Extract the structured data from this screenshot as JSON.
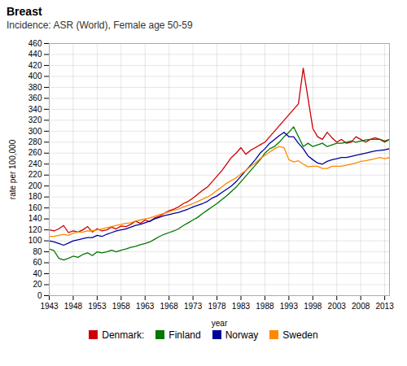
{
  "chart_data": {
    "type": "line",
    "title": "Breast",
    "subtitle": "Incidence: ASR (World), Female age 50-59",
    "xlabel": "year",
    "ylabel": "rate per 100,000",
    "x": [
      1943,
      1944,
      1945,
      1946,
      1947,
      1948,
      1949,
      1950,
      1951,
      1952,
      1953,
      1954,
      1955,
      1956,
      1957,
      1958,
      1959,
      1960,
      1961,
      1962,
      1963,
      1964,
      1965,
      1966,
      1967,
      1968,
      1969,
      1970,
      1971,
      1972,
      1973,
      1974,
      1975,
      1976,
      1977,
      1978,
      1979,
      1980,
      1981,
      1982,
      1983,
      1984,
      1985,
      1986,
      1987,
      1988,
      1989,
      1990,
      1991,
      1992,
      1993,
      1994,
      1995,
      1996,
      1997,
      1998,
      1999,
      2000,
      2001,
      2002,
      2003,
      2004,
      2005,
      2006,
      2007,
      2008,
      2009,
      2010,
      2011,
      2012,
      2013,
      2014
    ],
    "series": [
      {
        "name": "Denmark:",
        "color": "#cc0000",
        "values": [
          120,
          118,
          122,
          128,
          115,
          118,
          116,
          120,
          126,
          116,
          122,
          118,
          120,
          125,
          122,
          127,
          126,
          130,
          136,
          132,
          138,
          135,
          142,
          145,
          150,
          155,
          158,
          162,
          168,
          172,
          178,
          185,
          192,
          198,
          208,
          218,
          228,
          240,
          252,
          260,
          270,
          258,
          265,
          270,
          275,
          280,
          290,
          300,
          310,
          320,
          330,
          340,
          350,
          415,
          360,
          305,
          290,
          285,
          298,
          288,
          280,
          285,
          278,
          280,
          290,
          285,
          280,
          285,
          288,
          285,
          282,
          285
        ]
      },
      {
        "name": "Finland",
        "color": "#007700",
        "values": [
          85,
          82,
          68,
          65,
          68,
          72,
          70,
          75,
          78,
          73,
          80,
          78,
          80,
          83,
          80,
          83,
          85,
          88,
          90,
          93,
          95,
          98,
          103,
          108,
          112,
          115,
          118,
          122,
          128,
          133,
          138,
          143,
          150,
          156,
          162,
          168,
          175,
          182,
          190,
          198,
          208,
          218,
          228,
          238,
          248,
          260,
          268,
          272,
          280,
          290,
          298,
          308,
          290,
          272,
          278,
          272,
          275,
          278,
          272,
          275,
          278,
          278,
          280,
          282,
          280,
          282,
          284,
          285,
          285,
          285,
          280,
          285
        ]
      },
      {
        "name": "Norway",
        "color": "#000099",
        "values": [
          100,
          98,
          95,
          92,
          96,
          100,
          102,
          104,
          106,
          106,
          110,
          108,
          112,
          115,
          118,
          120,
          122,
          125,
          128,
          130,
          133,
          136,
          140,
          143,
          146,
          148,
          150,
          152,
          155,
          158,
          162,
          165,
          168,
          172,
          178,
          182,
          188,
          194,
          200,
          208,
          218,
          228,
          238,
          248,
          260,
          268,
          278,
          285,
          292,
          298,
          290,
          290,
          278,
          268,
          255,
          248,
          242,
          240,
          245,
          248,
          250,
          252,
          252,
          254,
          256,
          258,
          260,
          262,
          264,
          265,
          266,
          268
        ]
      },
      {
        "name": "Sweden",
        "color": "#ff8800",
        "values": [
          108,
          108,
          110,
          112,
          110,
          114,
          116,
          116,
          118,
          118,
          120,
          122,
          124,
          126,
          128,
          130,
          132,
          133,
          136,
          138,
          140,
          142,
          145,
          148,
          150,
          153,
          156,
          158,
          162,
          165,
          168,
          172,
          176,
          180,
          185,
          192,
          198,
          205,
          210,
          215,
          222,
          228,
          236,
          242,
          250,
          256,
          262,
          268,
          272,
          270,
          248,
          244,
          246,
          240,
          235,
          236,
          236,
          232,
          232,
          236,
          236,
          236,
          238,
          240,
          242,
          245,
          246,
          248,
          250,
          252,
          250,
          252
        ]
      }
    ],
    "xlim": [
      1943,
      2014
    ],
    "xticks": [
      1943,
      1948,
      1953,
      1958,
      1963,
      1968,
      1973,
      1978,
      1983,
      1988,
      1993,
      1998,
      2003,
      2008,
      2013
    ],
    "ylim": [
      0,
      460
    ],
    "yticks": [
      0,
      20,
      40,
      60,
      80,
      100,
      120,
      140,
      160,
      180,
      200,
      220,
      240,
      260,
      280,
      300,
      320,
      340,
      360,
      380,
      400,
      420,
      440,
      460
    ],
    "grid": true,
    "legend": "bottom"
  }
}
